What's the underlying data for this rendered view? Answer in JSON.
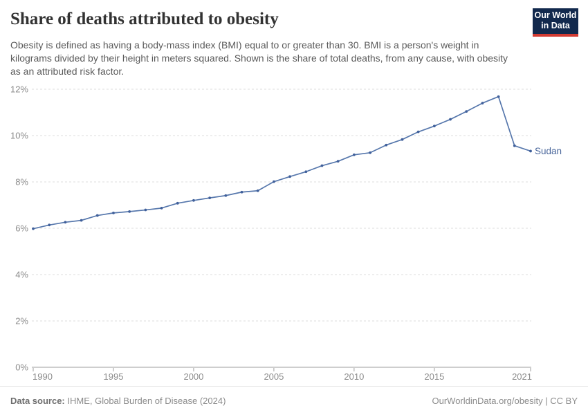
{
  "header": {
    "title": "Share of deaths attributed to obesity",
    "subtitle": "Obesity is defined as having a body-mass index (BMI) equal to or greater than 30. BMI is a person's weight in kilograms divided by their height in meters squared. Shown is the share of total deaths, from any cause, with obesity as an attributed risk factor.",
    "logo": {
      "line1": "Our World",
      "line2": "in Data",
      "bg_color": "#12294d",
      "accent_color": "#d23b32"
    }
  },
  "chart_data": {
    "type": "line",
    "title": "Share of deaths attributed to obesity",
    "xlabel": "",
    "ylabel": "",
    "xlim": [
      1990,
      2021
    ],
    "ylim": [
      0,
      12
    ],
    "x_ticks": [
      1990,
      1995,
      2000,
      2005,
      2010,
      2015,
      2021
    ],
    "y_ticks": [
      0,
      2,
      4,
      6,
      8,
      10,
      12
    ],
    "y_tick_suffix": "%",
    "grid": "horizontal-dashed",
    "legend_position": "end-of-line-label",
    "series": [
      {
        "name": "Sudan",
        "line_color": "#5677ac",
        "point_color": "#40609b",
        "label_color": "#48659a",
        "x": [
          1990,
          1991,
          1992,
          1993,
          1994,
          1995,
          1996,
          1997,
          1998,
          1999,
          2000,
          2001,
          2002,
          2003,
          2004,
          2005,
          2006,
          2007,
          2008,
          2009,
          2010,
          2011,
          2012,
          2013,
          2014,
          2015,
          2016,
          2017,
          2018,
          2019,
          2020,
          2021
        ],
        "values": [
          5.98,
          6.14,
          6.26,
          6.34,
          6.55,
          6.66,
          6.72,
          6.79,
          6.87,
          7.08,
          7.2,
          7.31,
          7.41,
          7.56,
          7.62,
          8.01,
          8.23,
          8.44,
          8.7,
          8.89,
          9.17,
          9.26,
          9.59,
          9.83,
          10.16,
          10.41,
          10.7,
          11.04,
          11.4,
          11.68,
          9.56,
          9.33
        ]
      }
    ]
  },
  "footer": {
    "datasource_label": "Data source:",
    "datasource_value": " IHME, Global Burden of Disease (2024)",
    "right_text": "OurWorldinData.org/obesity | CC BY"
  }
}
